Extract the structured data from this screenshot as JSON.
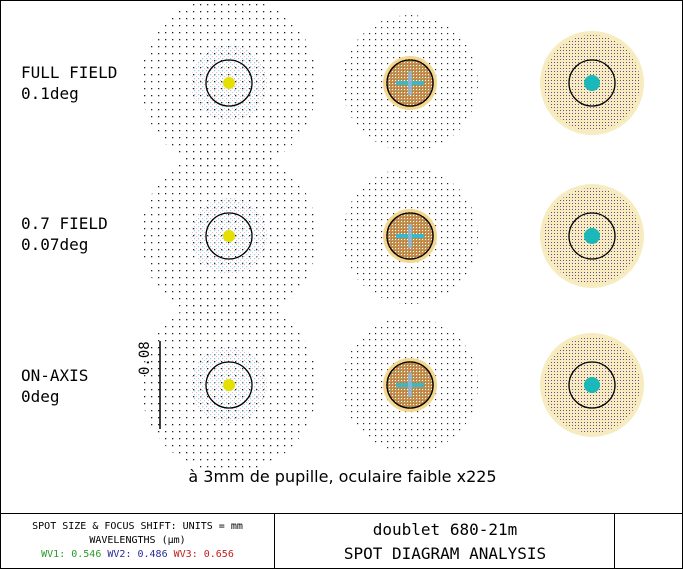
{
  "fields": [
    {
      "name": "FULL FIELD",
      "angle": "0.1deg"
    },
    {
      "name": "0.7 FIELD",
      "angle": "0.07deg"
    },
    {
      "name": "ON-AXIS",
      "angle": "0deg"
    }
  ],
  "scale_bar": {
    "label": "0.08"
  },
  "caption": "à 3mm de pupille, oculaire faible x225",
  "footer": {
    "units_line": "SPOT SIZE & FOCUS SHIFT: UNITS = mm",
    "wavelengths_line": "WAVELENGTHS (µm)",
    "wavelengths": [
      {
        "label": "WV1: 0.546",
        "color": "#2a9a2a"
      },
      {
        "label": "WV2: 0.486",
        "color": "#2a2a9a"
      },
      {
        "label": "WV3: 0.656",
        "color": "#c02020"
      }
    ],
    "title": "doublet 680-21m",
    "subtitle": "SPOT DIAGRAM ANALYSIS"
  },
  "colors": {
    "core1": "#e6e000",
    "core3": "#1ab8b8"
  }
}
